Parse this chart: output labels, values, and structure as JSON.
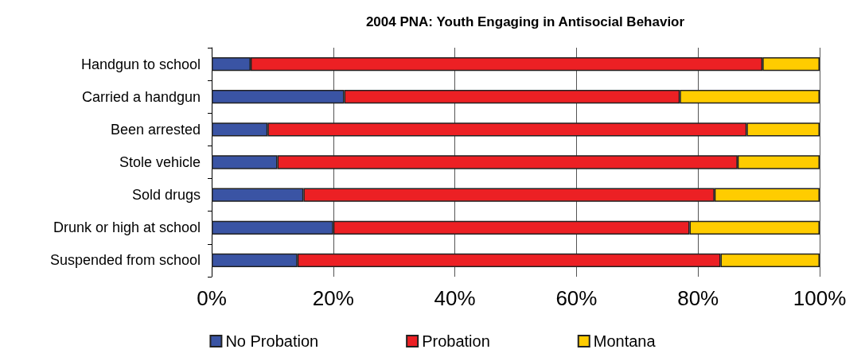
{
  "chart_data": {
    "type": "bar",
    "orientation": "horizontal",
    "stacked": true,
    "title": "2004 PNA: Youth Engaging in Antisocial Behavior",
    "categories": [
      "Handgun to school",
      "Carried a handgun",
      "Been arrested",
      "Stole vehicle",
      "Sold drugs",
      "Drunk or high at school",
      "Suspended from school"
    ],
    "series": [
      {
        "name": "No Probation",
        "color": "#3a54a4",
        "values": [
          6.4,
          21.8,
          9.2,
          10.8,
          15.1,
          20.0,
          14.1
        ]
      },
      {
        "name": "Probation",
        "color": "#ec2024",
        "values": [
          84.2,
          55.2,
          78.8,
          75.7,
          67.6,
          58.6,
          69.6
        ]
      },
      {
        "name": "Montana",
        "color": "#ffcc00",
        "values": [
          9.4,
          23.0,
          12.0,
          13.5,
          17.3,
          21.4,
          16.3
        ]
      }
    ],
    "xlim": [
      0,
      100
    ],
    "xticks": [
      {
        "value": 0,
        "label": "0%"
      },
      {
        "value": 20,
        "label": "20%"
      },
      {
        "value": 40,
        "label": "40%"
      },
      {
        "value": 60,
        "label": "60%"
      },
      {
        "value": 80,
        "label": "80%"
      },
      {
        "value": 100,
        "label": "100%"
      }
    ],
    "grid": "x",
    "legend": "bottom"
  }
}
